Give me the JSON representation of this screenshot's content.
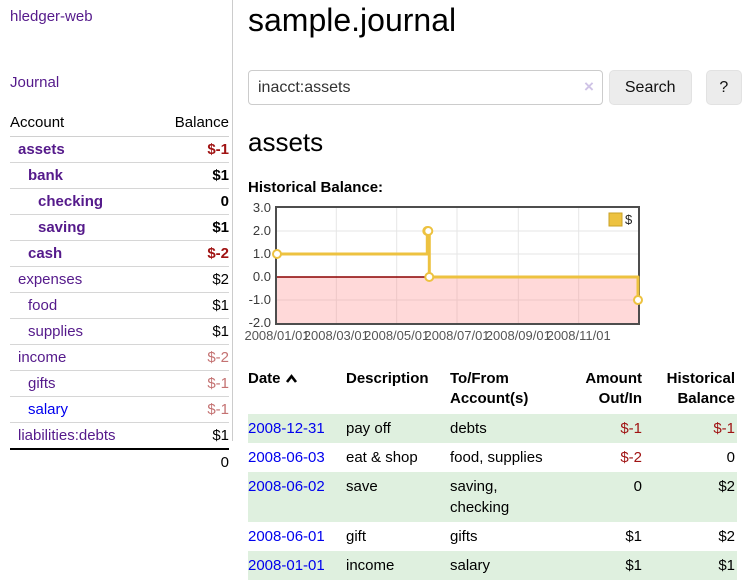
{
  "colors": {
    "link_purple": "#551a8b",
    "link_blue": "#0000ee",
    "negative_strong": "#a01313",
    "negative_soft": "#c47272",
    "row_green": "#dff0df",
    "chart_gold": "#edc240"
  },
  "sidebar": {
    "brand": "hledger-web",
    "journal_link": "Journal",
    "accounts_table": {
      "headers": [
        "Account",
        "Balance"
      ],
      "rows": [
        {
          "name": "assets",
          "indent": 1,
          "bold": true,
          "balance": "$-1",
          "balance_class": "neg-strong",
          "link_color": "purple"
        },
        {
          "name": "bank",
          "indent": 2,
          "bold": true,
          "balance": "$1",
          "balance_class": "",
          "link_color": "purple"
        },
        {
          "name": "checking",
          "indent": 3,
          "bold": true,
          "balance": "0",
          "balance_class": "",
          "link_color": "purple"
        },
        {
          "name": "saving",
          "indent": 3,
          "bold": true,
          "balance": "$1",
          "balance_class": "",
          "link_color": "purple"
        },
        {
          "name": "cash",
          "indent": 2,
          "bold": true,
          "balance": "$-2",
          "balance_class": "neg-strong",
          "link_color": "purple"
        },
        {
          "name": "expenses",
          "indent": 1,
          "bold": false,
          "balance": "$2",
          "balance_class": "",
          "link_color": "purple"
        },
        {
          "name": "food",
          "indent": 2,
          "bold": false,
          "balance": "$1",
          "balance_class": "",
          "link_color": "purple"
        },
        {
          "name": "supplies",
          "indent": 2,
          "bold": false,
          "balance": "$1",
          "balance_class": "",
          "link_color": "purple"
        },
        {
          "name": "income",
          "indent": 1,
          "bold": false,
          "balance": "$-2",
          "balance_class": "neg-soft",
          "link_color": "purple"
        },
        {
          "name": "gifts",
          "indent": 2,
          "bold": false,
          "balance": "$-1",
          "balance_class": "neg-soft",
          "link_color": "purple"
        },
        {
          "name": "salary",
          "indent": 2,
          "bold": false,
          "balance": "$-1",
          "balance_class": "neg-soft",
          "link_color": "blue"
        },
        {
          "name": "liabilities:debts",
          "indent": 1,
          "bold": false,
          "balance": "$1",
          "balance_class": "",
          "link_color": "purple"
        }
      ],
      "total": "0"
    }
  },
  "header": {
    "title": "sample.journal"
  },
  "search": {
    "value": "inacct:assets",
    "clear_icon": "×",
    "button_label": "Search",
    "help_label": "?"
  },
  "account_page": {
    "title": "assets",
    "section_label": "Historical Balance:"
  },
  "chart_data": {
    "type": "line",
    "step": true,
    "title": "Historical Balance",
    "series": [
      {
        "name": "$",
        "color": "#edc240",
        "points": [
          [
            "2008-01-01",
            1
          ],
          [
            "2008-06-01",
            2
          ],
          [
            "2008-06-02",
            2
          ],
          [
            "2008-06-03",
            0
          ],
          [
            "2008-12-31",
            -1
          ]
        ]
      }
    ],
    "x_range": [
      "2008-01-01",
      "2008-12-31"
    ],
    "ylim": [
      -2,
      3
    ],
    "y_ticks": [
      "3.0",
      "2.0",
      "1.0",
      "0.0",
      "-1.0",
      "-2.0"
    ],
    "x_ticks": [
      {
        "date": "2008-01-01",
        "label": "2008/01/01"
      },
      {
        "date": "2008-03-01",
        "label": "2008/03/01"
      },
      {
        "date": "2008-05-01",
        "label": "2008/05/01"
      },
      {
        "date": "2008-07-01",
        "label": "2008/07/01"
      },
      {
        "date": "2008-09-01",
        "label": "2008/09/01"
      },
      {
        "date": "2008-11-01",
        "label": "2008/11/01"
      }
    ],
    "grid_y_values": [
      2,
      1,
      -1
    ],
    "grid": true,
    "legend": {
      "label": "$",
      "position": "top-right",
      "swatch_color": "#edc240",
      "swatch_border": "#c9a227"
    },
    "negative_region_color": "rgba(255,120,120,0.28)",
    "zero_line_color": "#8b0000"
  },
  "register_table": {
    "headers": [
      {
        "line1": "Date",
        "line2": "",
        "align": "left",
        "sorted": "asc"
      },
      {
        "line1": "Description",
        "line2": "",
        "align": "left"
      },
      {
        "line1": "To/From",
        "line2": "Account(s)",
        "align": "left"
      },
      {
        "line1": "Amount",
        "line2": "Out/In",
        "align": "right"
      },
      {
        "line1": "Historical",
        "line2": "Balance",
        "align": "right"
      }
    ],
    "rows": [
      {
        "date": "2008-12-31",
        "description": "pay off",
        "accounts": "debts",
        "amount": "$-1",
        "amount_negative": true,
        "balance": "$-1",
        "balance_negative": true
      },
      {
        "date": "2008-06-03",
        "description": "eat & shop",
        "accounts": "food, supplies",
        "amount": "$-2",
        "amount_negative": true,
        "balance": "0",
        "balance_negative": false
      },
      {
        "date": "2008-06-02",
        "description": "save",
        "accounts": "saving, checking",
        "amount": "0",
        "amount_negative": false,
        "balance": "$2",
        "balance_negative": false
      },
      {
        "date": "2008-06-01",
        "description": "gift",
        "accounts": "gifts",
        "amount": "$1",
        "amount_negative": false,
        "balance": "$2",
        "balance_negative": false
      },
      {
        "date": "2008-01-01",
        "description": "income",
        "accounts": "salary",
        "amount": "$1",
        "amount_negative": false,
        "balance": "$1",
        "balance_negative": false
      }
    ]
  }
}
